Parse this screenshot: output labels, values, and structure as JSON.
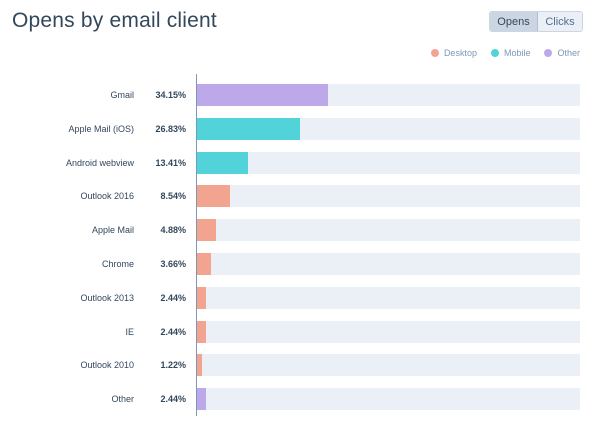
{
  "header": {
    "title": "Opens by email client",
    "toggle": {
      "opens_label": "Opens",
      "clicks_label": "Clicks",
      "selected": "Opens"
    }
  },
  "legend": [
    {
      "key": "desktop",
      "label": "Desktop",
      "color": "#f2a491"
    },
    {
      "key": "mobile",
      "label": "Mobile",
      "color": "#51d3d9"
    },
    {
      "key": "other",
      "label": "Other",
      "color": "#bda8ea"
    }
  ],
  "colors": {
    "desktop": "#f2a491",
    "mobile": "#51d3d9",
    "other": "#bda8ea",
    "track": "#eaf0f6",
    "axis": "#7c98b6"
  },
  "chart_data": {
    "type": "bar",
    "orientation": "horizontal",
    "title": "Opens by email client",
    "categories": [
      "Gmail",
      "Apple Mail (iOS)",
      "Android webview",
      "Outlook 2016",
      "Apple Mail",
      "Chrome",
      "Outlook 2013",
      "IE",
      "Outlook 2010",
      "Other"
    ],
    "value_labels": [
      "34.15%",
      "26.83%",
      "13.41%",
      "8.54%",
      "4.88%",
      "3.66%",
      "2.44%",
      "2.44%",
      "1.22%",
      "2.44%"
    ],
    "values": [
      34.15,
      26.83,
      13.41,
      8.54,
      4.88,
      3.66,
      2.44,
      2.44,
      1.22,
      2.44
    ],
    "groups": [
      "other",
      "mobile",
      "mobile",
      "desktop",
      "desktop",
      "desktop",
      "desktop",
      "desktop",
      "desktop",
      "other"
    ],
    "xlim": [
      0,
      100
    ],
    "legend_position": "top-right",
    "grid": false
  }
}
